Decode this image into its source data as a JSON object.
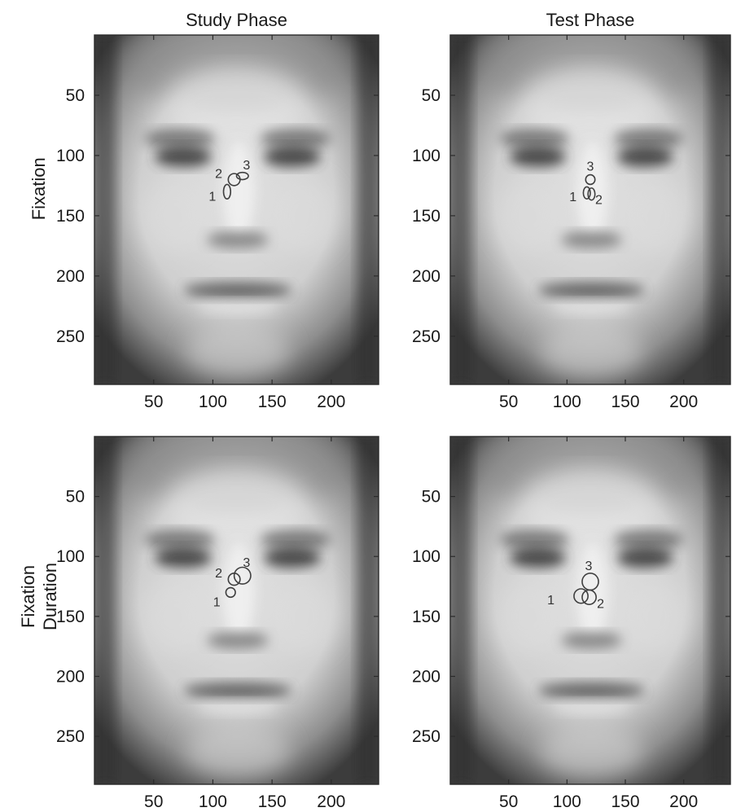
{
  "chart_data": [
    {
      "type": "scatter",
      "panel": "study-fixation",
      "title": "Study Phase",
      "ylabel": "Fixation",
      "xlim": [
        0,
        240
      ],
      "ylim": [
        290,
        0
      ],
      "xticks": [
        50,
        100,
        150,
        200
      ],
      "yticks": [
        50,
        100,
        150,
        200,
        250
      ],
      "points": [
        {
          "label": "1",
          "x": 112,
          "y": 130,
          "rx": 3,
          "ry": 6
        },
        {
          "label": "2",
          "x": 118,
          "y": 120,
          "rx": 5,
          "ry": 5
        },
        {
          "label": "3",
          "x": 125,
          "y": 117,
          "rx": 5,
          "ry": 3
        }
      ]
    },
    {
      "type": "scatter",
      "panel": "test-fixation",
      "title": "Test Phase",
      "ylabel": "",
      "xlim": [
        0,
        240
      ],
      "ylim": [
        290,
        0
      ],
      "xticks": [
        50,
        100,
        150,
        200
      ],
      "yticks": [
        50,
        100,
        150,
        200,
        250
      ],
      "points": [
        {
          "label": "1",
          "x": 117,
          "y": 131,
          "rx": 3,
          "ry": 5
        },
        {
          "label": "2",
          "x": 121,
          "y": 132,
          "rx": 3,
          "ry": 5
        },
        {
          "label": "3",
          "x": 120,
          "y": 120,
          "rx": 4,
          "ry": 4
        }
      ]
    },
    {
      "type": "scatter",
      "panel": "study-duration",
      "title": "",
      "ylabel": "Fixation Duration",
      "xlim": [
        0,
        240
      ],
      "ylim": [
        290,
        0
      ],
      "xticks": [
        50,
        100,
        150,
        200
      ],
      "yticks": [
        50,
        100,
        150,
        200,
        250
      ],
      "points": [
        {
          "label": "1",
          "x": 115,
          "y": 130,
          "rx": 4,
          "ry": 4
        },
        {
          "label": "2",
          "x": 118,
          "y": 119,
          "rx": 5,
          "ry": 5
        },
        {
          "label": "3",
          "x": 125,
          "y": 116,
          "rx": 7,
          "ry": 7
        }
      ]
    },
    {
      "type": "scatter",
      "panel": "test-duration",
      "title": "",
      "ylabel": "",
      "xlim": [
        0,
        240
      ],
      "ylim": [
        290,
        0
      ],
      "xticks": [
        50,
        100,
        150,
        200
      ],
      "yticks": [
        50,
        100,
        150,
        200,
        250
      ],
      "points": [
        {
          "label": "1",
          "x": 112,
          "y": 133,
          "rx": 6,
          "ry": 6
        },
        {
          "label": "2",
          "x": 119,
          "y": 134,
          "rx": 6,
          "ry": 6
        },
        {
          "label": "3",
          "x": 120,
          "y": 121,
          "rx": 7,
          "ry": 7
        }
      ]
    }
  ],
  "colors": {
    "background": "#ffffff",
    "face_light": "#e4e4e4",
    "face_mid": "#b4b4b4",
    "face_dark": "#3a3a3a",
    "feature_dark": "#4a4a4a",
    "marker": "#3f3f3f"
  }
}
